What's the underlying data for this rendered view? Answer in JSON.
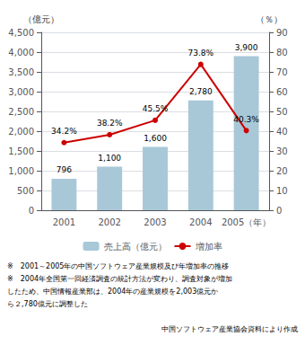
{
  "chart_data": {
    "type": "bar",
    "categories": [
      "2001",
      "2002",
      "2003",
      "2004",
      "2005（年）"
    ],
    "series": [
      {
        "name": "売上高（億元）",
        "type": "bar",
        "color": "#a8c8d8",
        "values": [
          796,
          1100,
          1600,
          2780,
          3900
        ],
        "value_labels": [
          "796",
          "1,100",
          "1,600",
          "2,780",
          "3,900"
        ]
      },
      {
        "name": "増加率",
        "type": "line",
        "axis": "y2",
        "color": "#cc0000",
        "marker": "circle",
        "values": [
          34.2,
          38.2,
          45.5,
          73.8,
          40.3
        ],
        "value_labels": [
          "34.2%",
          "38.2%",
          "45.5%",
          "73.8%",
          "40.3%"
        ]
      }
    ],
    "ylabel": "（億元）",
    "y2label": "（％）",
    "ylim": [
      0,
      4500
    ],
    "yticks": [
      0,
      500,
      {
        "value": 1000,
        "label": "1,000"
      },
      {
        "value": 1500,
        "label": "1,500"
      },
      {
        "value": 2000,
        "label": "2,000"
      },
      {
        "value": 2500,
        "label": "2,500"
      },
      {
        "value": 3000,
        "label": "3,000"
      },
      {
        "value": 3500,
        "label": "3,500"
      },
      {
        "value": 4000,
        "label": "4,000"
      },
      {
        "value": 4500,
        "label": "4,500"
      }
    ],
    "y2lim": [
      0,
      90
    ],
    "y2ticks": [
      0,
      10,
      20,
      30,
      40,
      50,
      60,
      70,
      80,
      90
    ],
    "grid": true,
    "legend": "bottom",
    "data_labels": true,
    "annotations": [
      "※　2001～2005年の中国ソフトウェア産業規模及び年増加率の推移",
      "※　2004年全国第一回経済調査の統計方法が変わり、調査対象が増加",
      "したため、中国情報産業部は、2004年の産業規模を2,003億元か",
      "ら２,780億元に調整した",
      "中国ソフトウェア産業協会資料により作成"
    ]
  }
}
